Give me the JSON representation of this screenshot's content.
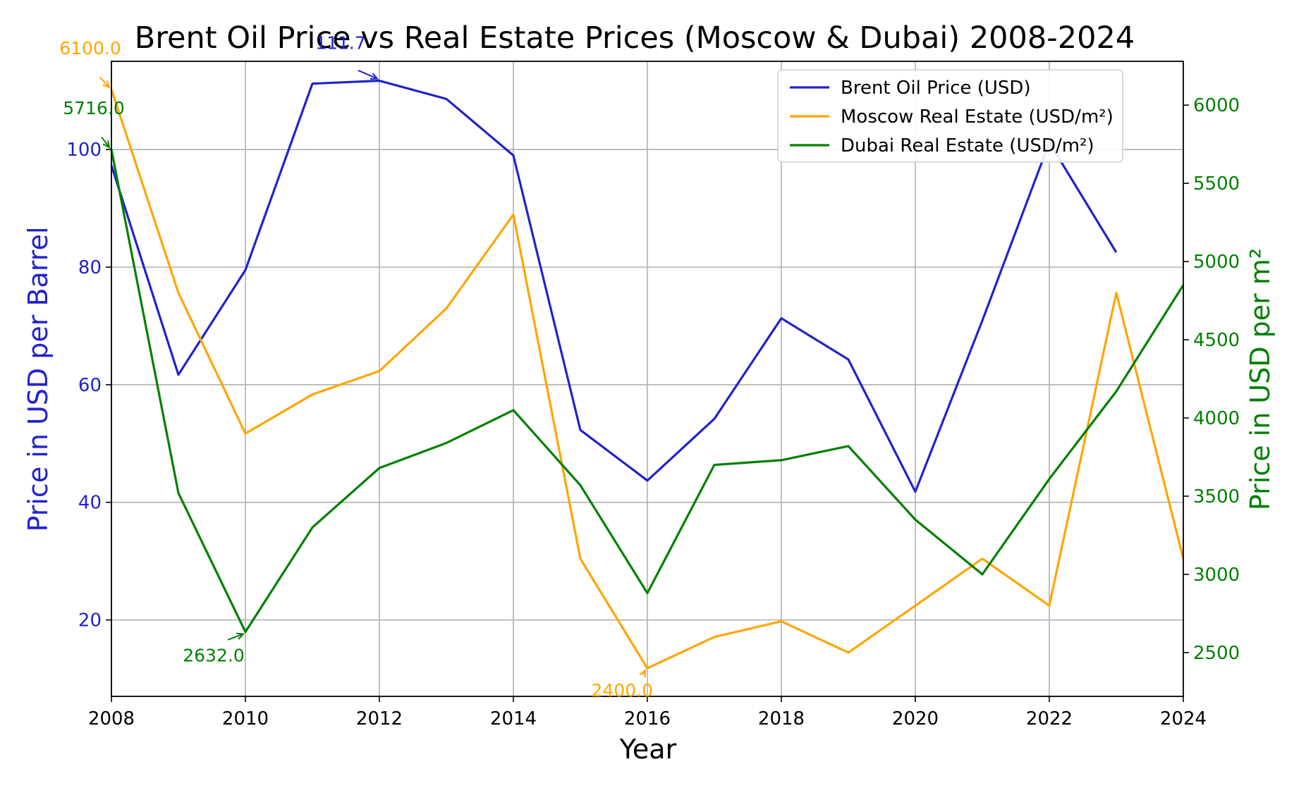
{
  "chart_data": {
    "type": "line",
    "title": "Brent Oil Price vs Real Estate Prices (Moscow & Dubai) 2008-2024",
    "xlabel": "Year",
    "ylabel_left": "Price in USD per Barrel",
    "ylabel_right": "Price in USD per m²",
    "xlim": [
      2008,
      2024
    ],
    "ylim_left": [
      7,
      115
    ],
    "ylim_right": [
      2220,
      6280
    ],
    "x_ticks": [
      "2008",
      "2010",
      "2012",
      "2014",
      "2016",
      "2018",
      "2020",
      "2022",
      "2024"
    ],
    "y_ticks_left": [
      "20",
      "40",
      "60",
      "80",
      "100"
    ],
    "y_ticks_right": [
      "2500",
      "3000",
      "3500",
      "4000",
      "4500",
      "5000",
      "5500",
      "6000"
    ],
    "grid": true,
    "legend_position": "top-right",
    "series": [
      {
        "name": "Brent Oil Price (USD)",
        "axis": "left",
        "color": "#2222cc",
        "x": [
          2008,
          2009,
          2010,
          2011,
          2012,
          2013,
          2014,
          2015,
          2016,
          2017,
          2018,
          2019,
          2020,
          2021,
          2022,
          2023
        ],
        "values": [
          97.3,
          61.7,
          79.5,
          111.2,
          111.7,
          108.6,
          99.0,
          52.3,
          43.7,
          54.2,
          71.3,
          64.3,
          41.8,
          70.9,
          101.2,
          82.5
        ]
      },
      {
        "name": "Moscow Real Estate (USD/m²)",
        "axis": "right",
        "color": "#ffa500",
        "x": [
          2008,
          2009,
          2010,
          2011,
          2012,
          2013,
          2014,
          2015,
          2016,
          2017,
          2018,
          2019,
          2020,
          2021,
          2022,
          2023,
          2024
        ],
        "values": [
          6100,
          4800,
          3900,
          4150,
          4300,
          4700,
          5300,
          3100,
          2400,
          2600,
          2700,
          2500,
          2800,
          3100,
          2800,
          4800,
          3100
        ]
      },
      {
        "name": "Dubai Real Estate (USD/m²)",
        "axis": "right",
        "color": "#008000",
        "x": [
          2008,
          2009,
          2010,
          2011,
          2012,
          2013,
          2014,
          2015,
          2016,
          2017,
          2018,
          2019,
          2020,
          2021,
          2022,
          2023,
          2024
        ],
        "values": [
          5716,
          3520,
          2632,
          3300,
          3680,
          3840,
          4050,
          3570,
          2880,
          3700,
          3730,
          3820,
          3350,
          3000,
          3610,
          4170,
          4850
        ]
      }
    ],
    "annotations": [
      {
        "text": "111.7",
        "series": 0,
        "x": 2012,
        "y": 111.7,
        "color": "#2222cc"
      },
      {
        "text": "6100.0",
        "series": 1,
        "x": 2008,
        "y": 6100,
        "color": "#ffa500"
      },
      {
        "text": "2400.0",
        "series": 1,
        "x": 2016,
        "y": 2400,
        "color": "#ffa500"
      },
      {
        "text": "5716.0",
        "series": 2,
        "x": 2008,
        "y": 5716,
        "color": "#008000"
      },
      {
        "text": "2632.0",
        "series": 2,
        "x": 2010,
        "y": 2632,
        "color": "#008000"
      }
    ]
  }
}
